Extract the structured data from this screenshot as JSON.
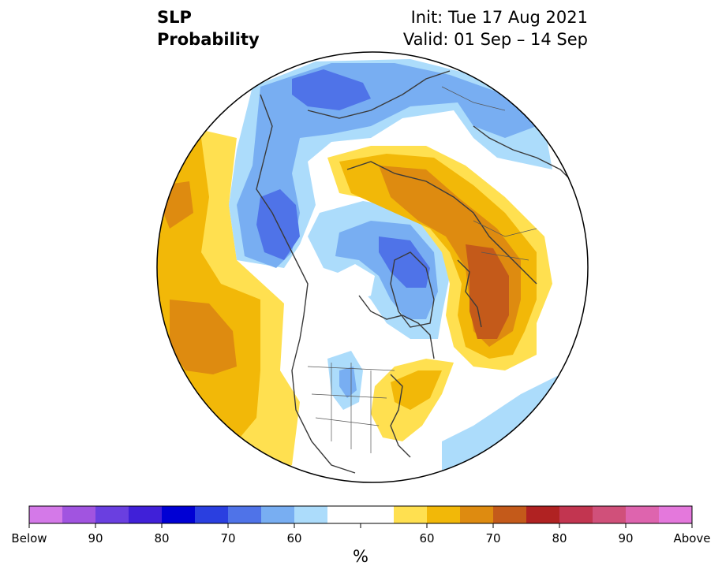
{
  "header": {
    "title_line1": "SLP",
    "title_line2": "Probability",
    "init": "Init: Tue 17 Aug 2021",
    "valid": "Valid: 01 Sep – 14 Sep"
  },
  "colorbar": {
    "unit": "%",
    "colors": [
      "#d479e8",
      "#a154e0",
      "#6a3fe0",
      "#4020d8",
      "#0000d4",
      "#2a3fe0",
      "#4f73e8",
      "#78aef2",
      "#acdcfb",
      "#ffffff",
      "#ffe050",
      "#f2b808",
      "#de8b10",
      "#c45a1a",
      "#b02222",
      "#c23550",
      "#d0507a",
      "#de64ae",
      "#e478dc"
    ],
    "tick_labels": [
      "Below",
      "90",
      "80",
      "70",
      "60",
      "60",
      "70",
      "80",
      "90",
      "Above"
    ]
  },
  "map": {
    "projection": "north-polar-stereographic",
    "fill_color": "#ffffff",
    "coastline_color": "#3a3a3a"
  }
}
